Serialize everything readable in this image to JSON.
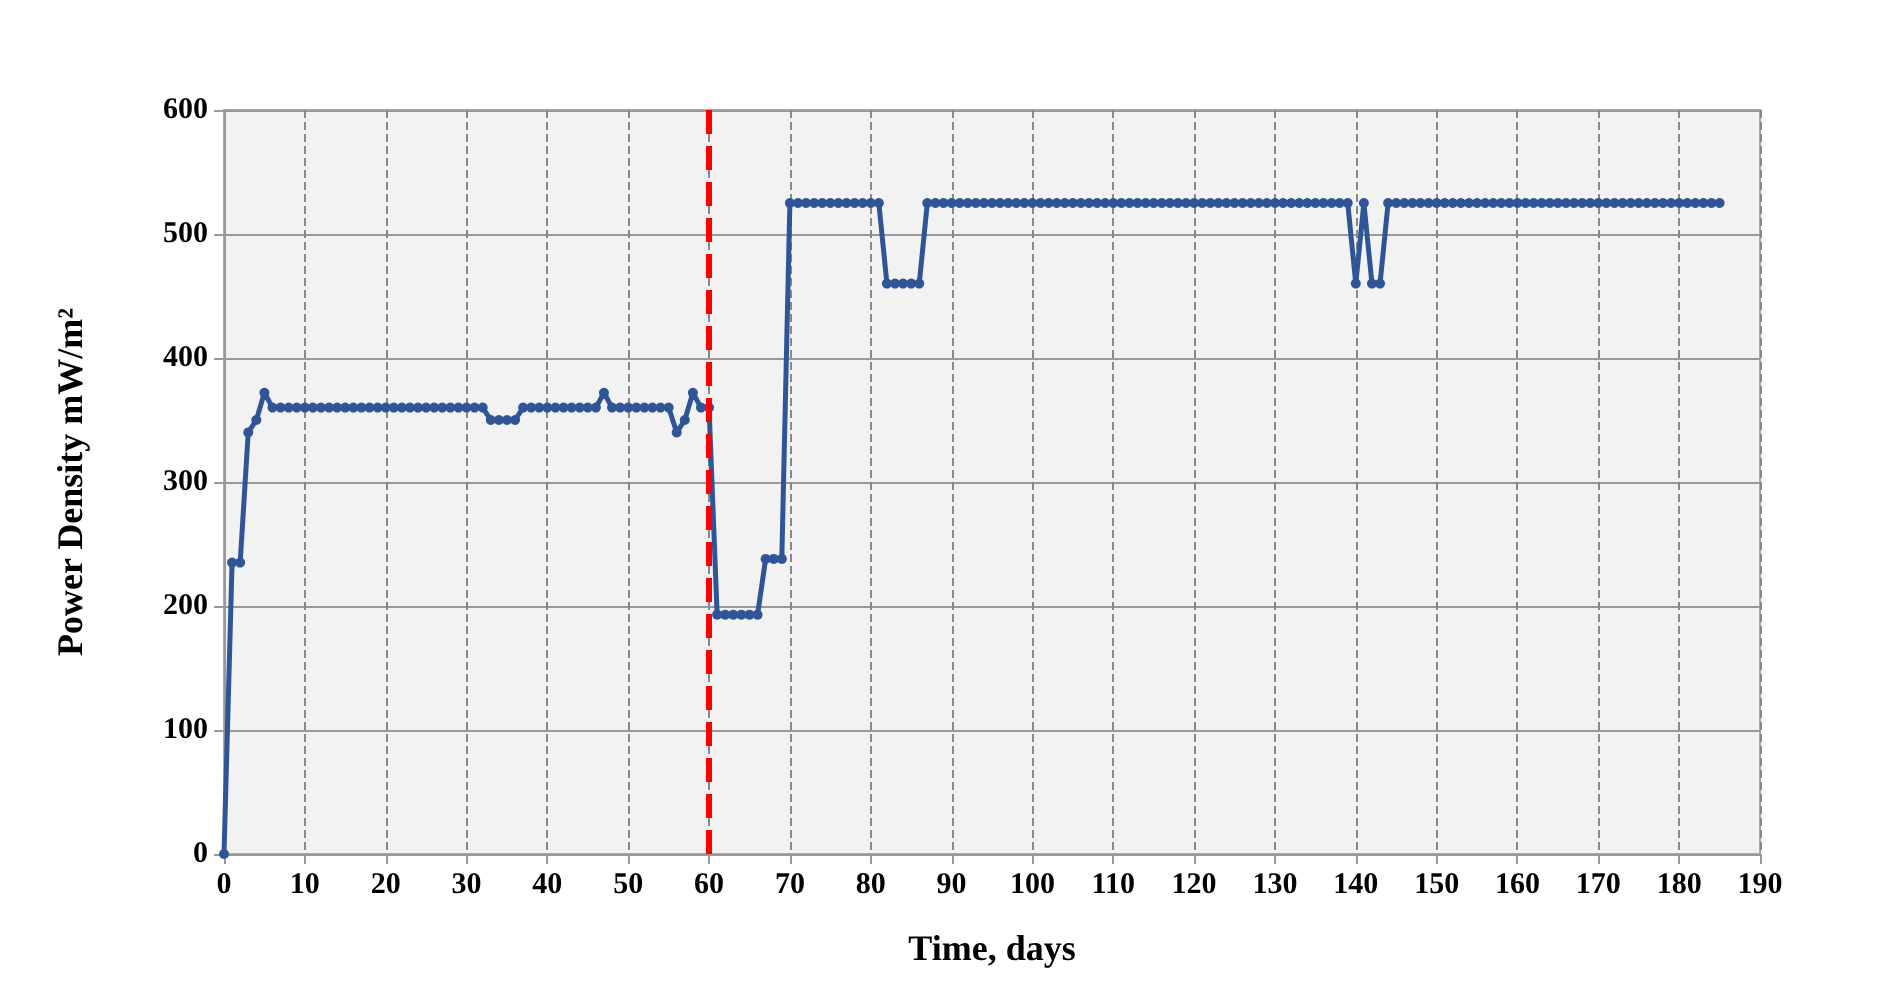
{
  "chart_data": {
    "type": "line",
    "xlabel": "Time, days",
    "ylabel": "Power Density mW/m²",
    "x": [
      0,
      1,
      2,
      3,
      4,
      5,
      6,
      7,
      8,
      9,
      10,
      11,
      12,
      13,
      14,
      15,
      16,
      17,
      18,
      19,
      20,
      21,
      22,
      23,
      24,
      25,
      26,
      27,
      28,
      29,
      30,
      31,
      32,
      33,
      34,
      35,
      36,
      37,
      38,
      39,
      40,
      41,
      42,
      43,
      44,
      45,
      46,
      47,
      48,
      49,
      50,
      51,
      52,
      53,
      54,
      55,
      56,
      57,
      58,
      59,
      60,
      61,
      62,
      63,
      64,
      65,
      66,
      67,
      68,
      69,
      70,
      71,
      72,
      73,
      74,
      75,
      76,
      77,
      78,
      79,
      80,
      81,
      82,
      83,
      84,
      85,
      86,
      87,
      88,
      89,
      90,
      91,
      92,
      93,
      94,
      95,
      96,
      97,
      98,
      99,
      100,
      101,
      102,
      103,
      104,
      105,
      106,
      107,
      108,
      109,
      110,
      111,
      112,
      113,
      114,
      115,
      116,
      117,
      118,
      119,
      120,
      121,
      122,
      123,
      124,
      125,
      126,
      127,
      128,
      129,
      130,
      131,
      132,
      133,
      134,
      135,
      136,
      137,
      138,
      139,
      140,
      141,
      142,
      143,
      144,
      145,
      146,
      147,
      148,
      149,
      150,
      151,
      152,
      153,
      154,
      155,
      156,
      157,
      158,
      159,
      160,
      161,
      162,
      163,
      164,
      165,
      166,
      167,
      168,
      169,
      170,
      171,
      172,
      173,
      174,
      175,
      176,
      177,
      178,
      179,
      180,
      181,
      182,
      183,
      184,
      185
    ],
    "series": [
      {
        "color": "#2f5597",
        "values": [
          0,
          235,
          235,
          340,
          350,
          372,
          360,
          360,
          360,
          360,
          360,
          360,
          360,
          360,
          360,
          360,
          360,
          360,
          360,
          360,
          360,
          360,
          360,
          360,
          360,
          360,
          360,
          360,
          360,
          360,
          360,
          360,
          360,
          350,
          350,
          350,
          350,
          360,
          360,
          360,
          360,
          360,
          360,
          360,
          360,
          360,
          360,
          372,
          360,
          360,
          360,
          360,
          360,
          360,
          360,
          360,
          340,
          350,
          372,
          360,
          360,
          193,
          193,
          193,
          193,
          193,
          193,
          238,
          238,
          238,
          525,
          525,
          525,
          525,
          525,
          525,
          525,
          525,
          525,
          525,
          525,
          525,
          460,
          460,
          460,
          460,
          460,
          525,
          525,
          525,
          525,
          525,
          525,
          525,
          525,
          525,
          525,
          525,
          525,
          525,
          525,
          525,
          525,
          525,
          525,
          525,
          525,
          525,
          525,
          525,
          525,
          525,
          525,
          525,
          525,
          525,
          525,
          525,
          525,
          525,
          525,
          525,
          525,
          525,
          525,
          525,
          525,
          525,
          525,
          525,
          525,
          525,
          525,
          525,
          525,
          525,
          525,
          525,
          525,
          525,
          460,
          525,
          460,
          460,
          525,
          525,
          525,
          525,
          525,
          525,
          525,
          525,
          525,
          525,
          525,
          525,
          525,
          525,
          525,
          525,
          525,
          525,
          525,
          525,
          525,
          525,
          525,
          525,
          525,
          525,
          525,
          525,
          525,
          525,
          525,
          525,
          525,
          525,
          525,
          525,
          525,
          525,
          525,
          525,
          525,
          525
        ]
      }
    ],
    "xlim": [
      0,
      190
    ],
    "xticks": [
      0,
      10,
      20,
      30,
      40,
      50,
      60,
      70,
      80,
      90,
      100,
      110,
      120,
      130,
      140,
      150,
      160,
      170,
      180,
      190
    ],
    "ylim": [
      0,
      600
    ],
    "yticks": [
      0,
      100,
      200,
      300,
      400,
      500,
      600
    ],
    "grid": true,
    "marker": "circle",
    "line_style": "solid",
    "ref_lines": [
      {
        "axis": "x",
        "value": 60,
        "color": "#ff0000",
        "line_style": "dashed"
      }
    ]
  }
}
